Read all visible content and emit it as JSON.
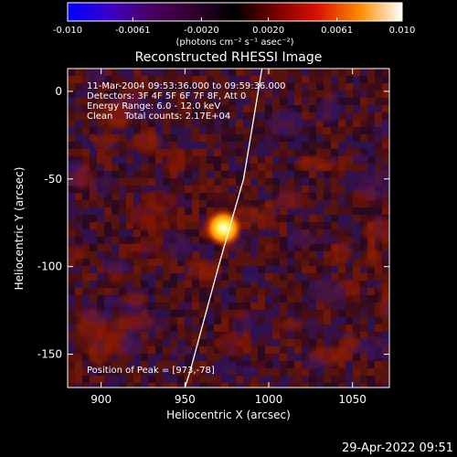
{
  "colorbar": {
    "tick_labels": [
      "-0.010",
      "-0.0061",
      "-0.0020",
      "0.0020",
      "0.0061",
      "0.010"
    ],
    "tick_values": [
      -0.01,
      -0.0061,
      -0.002,
      0.002,
      0.0061,
      0.01
    ],
    "min": -0.01,
    "max": 0.01,
    "units_label": "(photons cm⁻² s⁻¹ asec⁻²)",
    "color_stops": [
      "#0000ff",
      "#3a00c8",
      "#4a0060",
      "#300030",
      "#000000",
      "#7a0000",
      "#dc1400",
      "#ff8c00",
      "#ffffff"
    ]
  },
  "chart_data": {
    "type": "heatmap",
    "title": "Reconstructed RHESSI Image",
    "xlabel": "Heliocentric X (arcsec)",
    "ylabel": "Heliocentric Y (arcsec)",
    "xlim": [
      880,
      1072
    ],
    "ylim": [
      -169,
      13
    ],
    "x_ticks": [
      900,
      950,
      1000,
      1050
    ],
    "y_ticks": [
      0,
      -50,
      -100,
      -150
    ],
    "x_tick_labels": [
      "900",
      "950",
      "1000",
      "1050"
    ],
    "y_tick_labels": [
      "0",
      "-50",
      "-100",
      "-150"
    ],
    "peak": {
      "x": 973,
      "y": -78
    },
    "info_lines": [
      "11-Mar-2004 09:53:36.000 to 09:59:36.000",
      "Detectors: 3F 4F 5F 6F 7F 8F, Att 0",
      "Energy Range: 6.0 - 12.0 keV",
      "Clean    Total counts: 2.17E+04"
    ],
    "peak_label": "Position of Peak = [973,-78]",
    "limb_points": [
      [
        996,
        13
      ],
      [
        985,
        -50
      ],
      [
        970,
        -100
      ],
      [
        953,
        -160
      ],
      [
        950,
        -169
      ]
    ]
  },
  "footer": {
    "timestamp": "29-Apr-2022 09:51"
  }
}
